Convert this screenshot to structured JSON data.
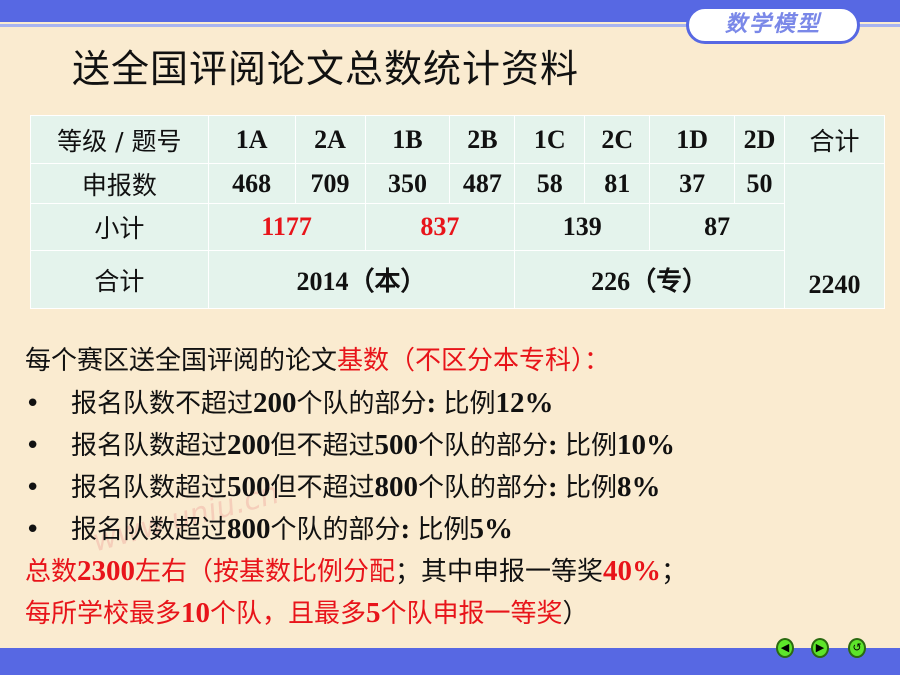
{
  "header": {
    "badge": "数学模型",
    "title": "送全国评阅论文总数统计资料"
  },
  "table": {
    "header": [
      "等级 / 题号",
      "1A",
      "2A",
      "1B",
      "2B",
      "1C",
      "2C",
      "1D",
      "2D",
      "合计"
    ],
    "reported_label": "申报数",
    "reported": [
      "468",
      "709",
      "350",
      "487",
      "58",
      "81",
      "37",
      "50"
    ],
    "subtotal_label": "小计",
    "subtotals": [
      "1177",
      "837",
      "139",
      "87"
    ],
    "total_label": "合计",
    "totals": [
      "2014（本）",
      "226（专）"
    ],
    "grand_total": "2240"
  },
  "watermark": "www.uniu.cn",
  "lines": [
    {
      "bullet": "",
      "segments": [
        {
          "t": "每个赛区送全国评阅的论文",
          "c": "k"
        },
        {
          "t": "基数（不区分本专科）：",
          "c": "r"
        }
      ]
    },
    {
      "bullet": "•",
      "segments": [
        {
          "t": "报名队数不超过",
          "c": "k"
        },
        {
          "t": "200",
          "c": "k",
          "b": 1
        },
        {
          "t": "个队的部分",
          "c": "k"
        },
        {
          "t": ": ",
          "c": "k",
          "b": 1
        },
        {
          "t": "比例",
          "c": "k"
        },
        {
          "t": "12%",
          "c": "k",
          "b": 1
        }
      ]
    },
    {
      "bullet": "•",
      "segments": [
        {
          "t": "报名队数超过",
          "c": "k"
        },
        {
          "t": "200",
          "c": "k",
          "b": 1
        },
        {
          "t": "但不超过",
          "c": "k"
        },
        {
          "t": "500",
          "c": "k",
          "b": 1
        },
        {
          "t": "个队的部分",
          "c": "k"
        },
        {
          "t": ": ",
          "c": "k",
          "b": 1
        },
        {
          "t": "比例",
          "c": "k"
        },
        {
          "t": "10%",
          "c": "k",
          "b": 1
        }
      ]
    },
    {
      "bullet": "•",
      "segments": [
        {
          "t": "报名队数超过",
          "c": "k"
        },
        {
          "t": "500",
          "c": "k",
          "b": 1
        },
        {
          "t": "但不超过",
          "c": "k"
        },
        {
          "t": "800",
          "c": "k",
          "b": 1
        },
        {
          "t": "个队的部分",
          "c": "k"
        },
        {
          "t": ": ",
          "c": "k",
          "b": 1
        },
        {
          "t": "比例",
          "c": "k"
        },
        {
          "t": "8%",
          "c": "k",
          "b": 1
        }
      ]
    },
    {
      "bullet": "•",
      "segments": [
        {
          "t": "报名队数超过",
          "c": "k"
        },
        {
          "t": "800",
          "c": "k",
          "b": 1
        },
        {
          "t": "个队的部分",
          "c": "k"
        },
        {
          "t": ": ",
          "c": "k",
          "b": 1
        },
        {
          "t": "比例",
          "c": "k"
        },
        {
          "t": "5%",
          "c": "k",
          "b": 1
        }
      ]
    },
    {
      "bullet": "",
      "segments": [
        {
          "t": "总数",
          "c": "r"
        },
        {
          "t": "2300",
          "c": "r",
          "b": 1
        },
        {
          "t": "左右（按基数比例分配",
          "c": "r"
        },
        {
          "t": "；其中申报一等奖",
          "c": "k"
        },
        {
          "t": "40%",
          "c": "r",
          "b": 1
        },
        {
          "t": "；",
          "c": "k"
        }
      ]
    },
    {
      "bullet": "",
      "segments": [
        {
          "t": "每所学校最多",
          "c": "r"
        },
        {
          "t": "10",
          "c": "r",
          "b": 1
        },
        {
          "t": "个队，且最多",
          "c": "r"
        },
        {
          "t": "5",
          "c": "r",
          "b": 1
        },
        {
          "t": "个队申报一等奖",
          "c": "r"
        },
        {
          "t": "）",
          "c": "k"
        }
      ]
    }
  ],
  "nav": {
    "prev_icon": "◀",
    "next_icon": "▶",
    "return_icon": "↺"
  },
  "colors": {
    "bar": "#5768E3",
    "background": "#FAEBD0",
    "red": "#E8141A",
    "table": "#E4F3EC"
  }
}
